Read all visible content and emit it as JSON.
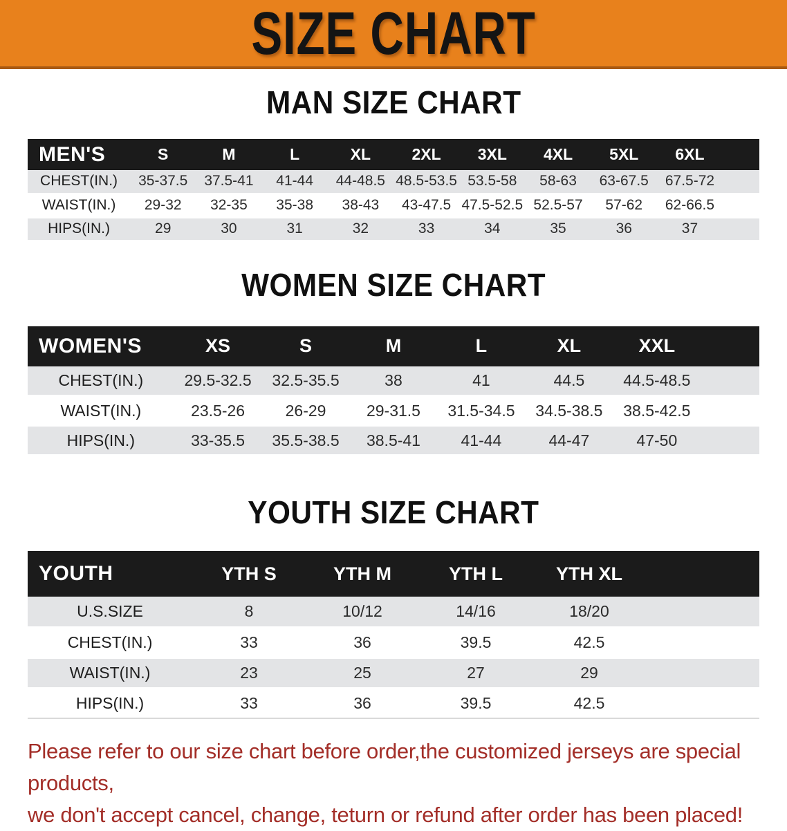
{
  "banner": {
    "title": "SIZE CHART"
  },
  "colors": {
    "banner_bg": "#E8811C",
    "banner_edge": "#A85912",
    "header_bg": "#1B1B1B",
    "row_alt": "#E3E4E6",
    "note_red": "#A32E28"
  },
  "men": {
    "title": "MAN SIZE CHART",
    "label": "MEN'S",
    "sizes": [
      "S",
      "M",
      "L",
      "XL",
      "2XL",
      "3XL",
      "4XL",
      "5XL",
      "6XL"
    ],
    "rows": [
      {
        "label": "CHEST(IN.)",
        "shaded": true,
        "values": [
          "35-37.5",
          "37.5-41",
          "41-44",
          "44-48.5",
          "48.5-53.5",
          "53.5-58",
          "58-63",
          "63-67.5",
          "67.5-72"
        ]
      },
      {
        "label": "WAIST(IN.)",
        "shaded": false,
        "values": [
          "29-32",
          "32-35",
          "35-38",
          "38-43",
          "43-47.5",
          "47.5-52.5",
          "52.5-57",
          "57-62",
          "62-66.5"
        ]
      },
      {
        "label": "HIPS(IN.)",
        "shaded": true,
        "values": [
          "29",
          "30",
          "31",
          "32",
          "33",
          "34",
          "35",
          "36",
          "37"
        ]
      }
    ]
  },
  "women": {
    "title": "WOMEN SIZE CHART",
    "label": "WOMEN'S",
    "sizes": [
      "XS",
      "S",
      "M",
      "L",
      "XL",
      "XXL"
    ],
    "rows": [
      {
        "label": "CHEST(IN.)",
        "shaded": true,
        "values": [
          "29.5-32.5",
          "32.5-35.5",
          "38",
          "41",
          "44.5",
          "44.5-48.5"
        ]
      },
      {
        "label": "WAIST(IN.)",
        "shaded": false,
        "values": [
          "23.5-26",
          "26-29",
          "29-31.5",
          "31.5-34.5",
          "34.5-38.5",
          "38.5-42.5"
        ]
      },
      {
        "label": "HIPS(IN.)",
        "shaded": true,
        "values": [
          "33-35.5",
          "35.5-38.5",
          "38.5-41",
          "41-44",
          "44-47",
          "47-50"
        ]
      }
    ]
  },
  "youth": {
    "title": "YOUTH SIZE CHART",
    "label": "YOUTH",
    "sizes": [
      "YTH S",
      "YTH M",
      "YTH L",
      "YTH XL"
    ],
    "rows": [
      {
        "label": "U.S.SIZE",
        "shaded": true,
        "values": [
          "8",
          "10/12",
          "14/16",
          "18/20"
        ]
      },
      {
        "label": "CHEST(IN.)",
        "shaded": false,
        "values": [
          "33",
          "36",
          "39.5",
          "42.5"
        ]
      },
      {
        "label": "WAIST(IN.)",
        "shaded": true,
        "values": [
          "23",
          "25",
          "27",
          "29"
        ]
      },
      {
        "label": "HIPS(IN.)",
        "shaded": false,
        "values": [
          "33",
          "36",
          "39.5",
          "42.5"
        ]
      }
    ]
  },
  "note": {
    "line1": "Please refer to our size chart before order,the customized jerseys are special products,",
    "line2": "we don't accept cancel, change, teturn or refund after order has been placed!"
  }
}
